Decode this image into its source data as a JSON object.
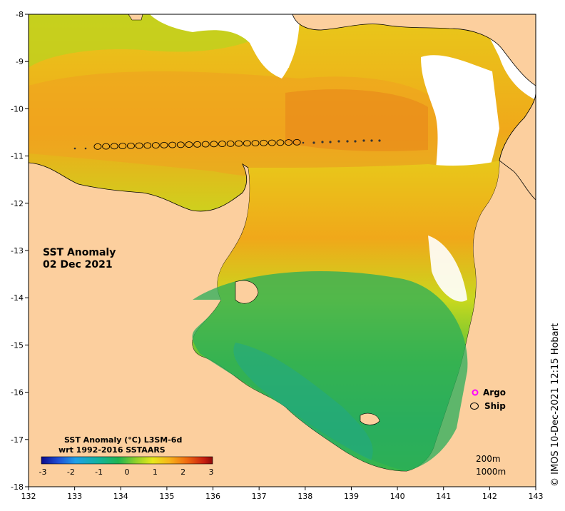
{
  "map": {
    "title_line1": "SST Anomaly",
    "title_line2": "02 Dec 2021",
    "lon_ticks": [
      "132",
      "133",
      "134",
      "135",
      "136",
      "137",
      "138",
      "139",
      "140",
      "141",
      "142",
      "143"
    ],
    "lat_ticks": [
      "-8",
      "-9",
      "-10",
      "-11",
      "-12",
      "-13",
      "-14",
      "-15",
      "-16",
      "-17",
      "-18"
    ],
    "credit": "© IMOS 10-Dec-2021 12:15 Hobart",
    "colors": {
      "land": "#fccf9e",
      "border": "#000000",
      "nodata": "#ffffff"
    }
  },
  "colorbar": {
    "title_line1": "SST Anomaly (°C) L3SM-6d",
    "title_line2": "wrt 1992-2016 SSTAARS",
    "ticks": [
      "-3",
      "-2",
      "-1",
      "0",
      "1",
      "2",
      "3"
    ],
    "colors": [
      "#0b0b8c",
      "#1f4fd6",
      "#1fa0e8",
      "#12b3a0",
      "#20b450",
      "#8ed02a",
      "#e8e81a",
      "#f7b21a",
      "#f06a10",
      "#c81e10",
      "#8c0a0a"
    ]
  },
  "legend": {
    "argo_label": "Argo",
    "ship_label": "Ship",
    "argo_color": "#ff00ff",
    "ship_color": "#000000"
  },
  "depth_labels": {
    "d200": "200m",
    "d1000": "1000m"
  },
  "ship_track": {
    "lat": -10.8,
    "lons": [
      133.5,
      133.68,
      133.86,
      134.04,
      134.22,
      134.4,
      134.58,
      134.76,
      134.94,
      135.12,
      135.3,
      135.48,
      135.66,
      135.84,
      136.02,
      136.2,
      136.38,
      136.56,
      136.74,
      136.92,
      137.1,
      137.28,
      137.46,
      137.64,
      137.82
    ]
  }
}
